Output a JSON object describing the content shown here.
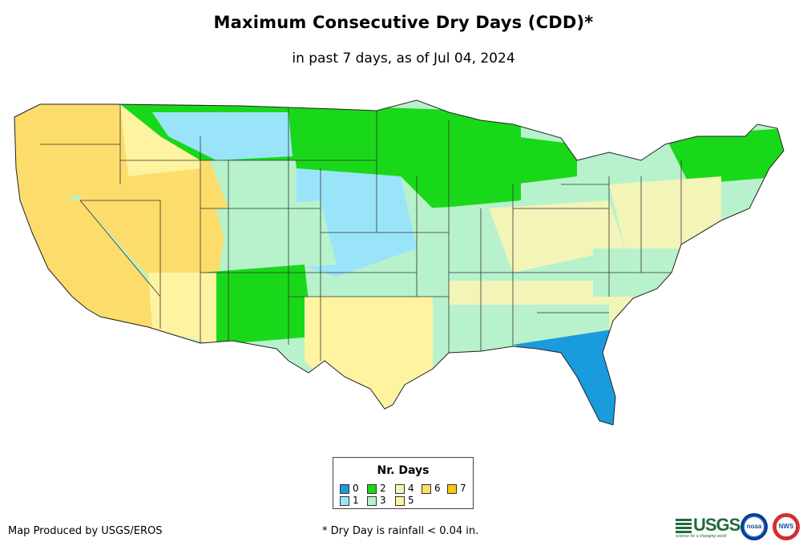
{
  "title": "Maximum Consecutive Dry Days (CDD)*",
  "subtitle": "in past 7 days, as of Jul 04, 2024",
  "legend": {
    "title": "Nr. Days",
    "items": [
      {
        "label": "0",
        "color": "#1a9bdb"
      },
      {
        "label": "1",
        "color": "#9ae4fa"
      },
      {
        "label": "2",
        "color": "#19d819"
      },
      {
        "label": "3",
        "color": "#b8f2cc"
      },
      {
        "label": "4",
        "color": "#f2f4b8"
      },
      {
        "label": "5",
        "color": "#fdf3a0"
      },
      {
        "label": "6",
        "color": "#fcdc6b"
      },
      {
        "label": "7",
        "color": "#fbc707"
      }
    ]
  },
  "footer": {
    "producer": "Map Produced by USGS/EROS",
    "note": "* Dry Day is rainfall < 0.04 in."
  },
  "logos": {
    "usgs_text": "USGS",
    "usgs_tagline": "science for a changing world",
    "noaa_text": "noaa",
    "nws_text": "NWS"
  },
  "map_regions": [
    {
      "name": "pacific-northwest",
      "category": "6"
    },
    {
      "name": "california",
      "category": "6"
    },
    {
      "name": "great-basin",
      "category": "6"
    },
    {
      "name": "northern-rockies",
      "category": "2"
    },
    {
      "name": "dakotas-minnesota",
      "category": "2"
    },
    {
      "name": "central-plains",
      "category": "1"
    },
    {
      "name": "texas",
      "category": "5"
    },
    {
      "name": "southwest",
      "category": "3"
    },
    {
      "name": "midwest",
      "category": "3"
    },
    {
      "name": "ohio-valley",
      "category": "4"
    },
    {
      "name": "southeast",
      "category": "3"
    },
    {
      "name": "florida-gulf",
      "category": "0"
    },
    {
      "name": "northeast",
      "category": "2"
    }
  ]
}
